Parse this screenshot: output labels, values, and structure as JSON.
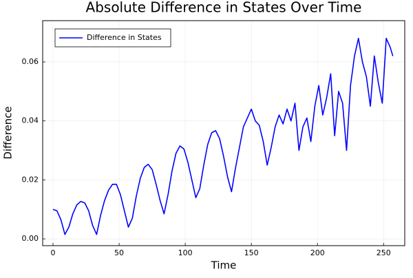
{
  "chart_data": {
    "type": "line",
    "title": "Absolute Difference in States Over Time",
    "xlabel": "Time",
    "ylabel": "Difference",
    "x": [
      0,
      3,
      6,
      9,
      12,
      15,
      18,
      21,
      24,
      27,
      30,
      33,
      36,
      39,
      42,
      45,
      48,
      51,
      54,
      57,
      60,
      63,
      66,
      69,
      72,
      75,
      78,
      81,
      84,
      87,
      90,
      93,
      96,
      99,
      102,
      105,
      108,
      111,
      114,
      117,
      120,
      123,
      126,
      129,
      132,
      135,
      138,
      141,
      144,
      147,
      150,
      153,
      156,
      159,
      162,
      165,
      168,
      171,
      174,
      177,
      180,
      183,
      186,
      189,
      192,
      195,
      198,
      201,
      204,
      207,
      210,
      213,
      216,
      219,
      222,
      225,
      228,
      231,
      234,
      237,
      240,
      243,
      246,
      249,
      252,
      255,
      257
    ],
    "series": [
      {
        "name": "Difference in States",
        "color": "#0000ff",
        "values": [
          0.01,
          0.0095,
          0.0065,
          0.0015,
          0.004,
          0.0085,
          0.0115,
          0.0127,
          0.0122,
          0.0095,
          0.0045,
          0.0015,
          0.008,
          0.013,
          0.0165,
          0.0185,
          0.0185,
          0.015,
          0.0095,
          0.004,
          0.007,
          0.0145,
          0.0205,
          0.0242,
          0.0253,
          0.0235,
          0.0185,
          0.013,
          0.0085,
          0.015,
          0.023,
          0.029,
          0.0315,
          0.0305,
          0.026,
          0.02,
          0.014,
          0.017,
          0.025,
          0.032,
          0.036,
          0.0367,
          0.034,
          0.028,
          0.021,
          0.016,
          0.024,
          0.031,
          0.038,
          0.041,
          0.044,
          0.04,
          0.0385,
          0.033,
          0.025,
          0.031,
          0.038,
          0.042,
          0.039,
          0.044,
          0.04,
          0.046,
          0.03,
          0.038,
          0.041,
          0.033,
          0.045,
          0.052,
          0.042,
          0.048,
          0.056,
          0.035,
          0.05,
          0.046,
          0.03,
          0.052,
          0.062,
          0.068,
          0.06,
          0.055,
          0.045,
          0.062,
          0.053,
          0.046,
          0.068,
          0.065,
          0.062
        ]
      }
    ],
    "xlim": [
      -7.8,
      266
    ],
    "ylim": [
      -0.0023,
      0.074
    ],
    "xticks": [
      0,
      50,
      100,
      150,
      200,
      250
    ],
    "yticks": [
      {
        "value": 0,
        "label": "0.00"
      },
      {
        "value": 0.02,
        "label": "0.02"
      },
      {
        "value": 0.04,
        "label": "0.04"
      },
      {
        "value": 0.06,
        "label": "0.06"
      }
    ],
    "grid": true,
    "legend": "top-left"
  }
}
